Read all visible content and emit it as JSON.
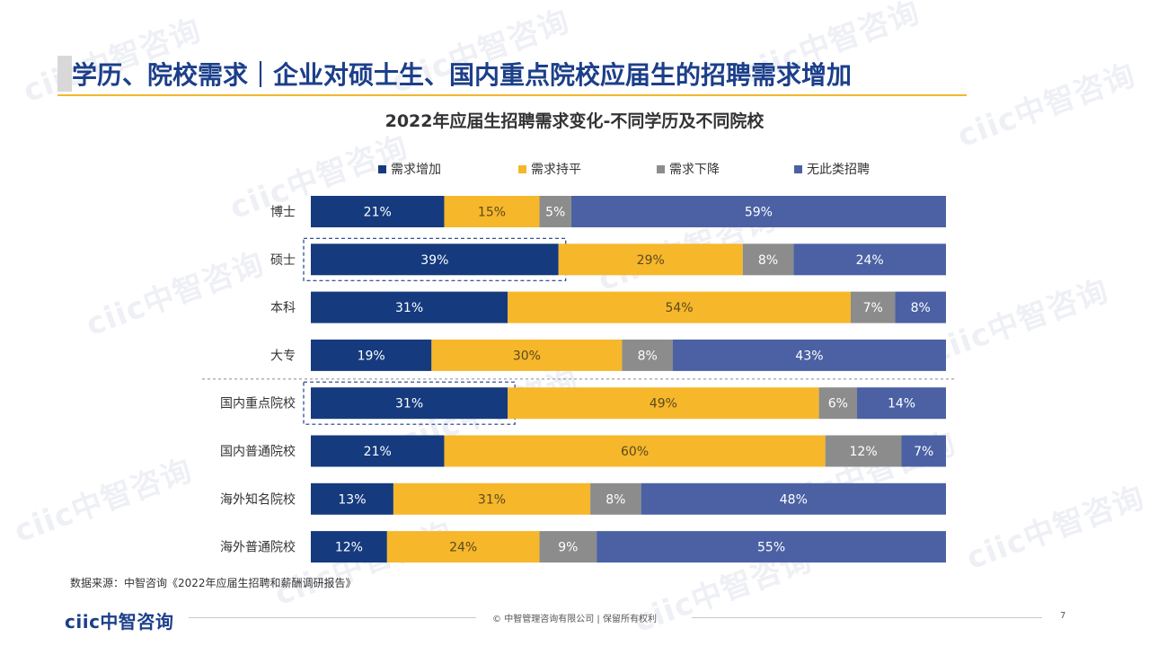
{
  "header": {
    "title": "学历、院校需求｜企业对硕士生、国内重点院校应届生的招聘需求增加"
  },
  "colors": {
    "title": "#1c3f8a",
    "accent_rule": "#f2b731",
    "series": [
      "#153a7e",
      "#f6b72b",
      "#8c8c8c",
      "#4b61a4"
    ]
  },
  "chart_data": {
    "type": "bar",
    "orientation": "horizontal",
    "stacked": true,
    "percent": true,
    "title": "2022年应届生招聘需求变化-不同学历及不同院校",
    "legend_position": "top",
    "categories": [
      "博士",
      "硕士",
      "本科",
      "大专",
      "国内重点院校",
      "国内普通院校",
      "海外知名院校",
      "海外普通院校"
    ],
    "series": [
      {
        "name": "需求增加",
        "values": [
          21,
          39,
          31,
          19,
          31,
          21,
          13,
          12
        ],
        "labels": [
          "21%",
          "39%",
          "31%",
          "19%",
          "31%",
          "21%",
          "13%",
          "12%"
        ]
      },
      {
        "name": "需求持平",
        "values": [
          15,
          29,
          54,
          30,
          49,
          60,
          31,
          24
        ],
        "labels": [
          "15%",
          "29%",
          "54%",
          "30%",
          "49%",
          "60%",
          "31%",
          "24%"
        ]
      },
      {
        "name": "需求下降",
        "values": [
          5,
          8,
          7,
          8,
          6,
          12,
          8,
          9
        ],
        "labels": [
          "5%",
          "8%",
          "7%",
          "8%",
          "6%",
          "12%",
          "8%",
          "9%"
        ]
      },
      {
        "name": "无此类招聘",
        "values": [
          59,
          24,
          8,
          43,
          14,
          7,
          48,
          55
        ],
        "labels": [
          "59%",
          "24%",
          "8%",
          "43%",
          "14%",
          "7%",
          "48%",
          "55%"
        ]
      }
    ],
    "highlighted": [
      {
        "category": "硕士",
        "series": "需求增加"
      },
      {
        "category": "国内重点院校",
        "series": "需求增加"
      }
    ],
    "separator_after_category": "大专"
  },
  "source_note": "数据来源：中智咨询《2022年应届生招聘和薪酬调研报告》",
  "footer": {
    "logo": "ciic中智咨询",
    "copyright": "© 中智管理咨询有限公司 | 保留所有权利",
    "page_number": "7"
  },
  "watermark_text": "ciic中智咨询"
}
